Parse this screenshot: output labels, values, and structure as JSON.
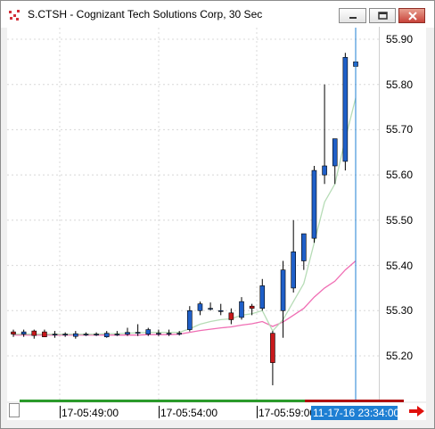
{
  "window": {
    "title": "S.CTSH - Cognizant Tech Solutions Corp, 30 Sec"
  },
  "colors": {
    "up_candle": "#1f5fc8",
    "down_candle": "#c8191c",
    "ma_fast": "#b6dcb6",
    "ma_slow": "#f06eb4",
    "cursor_line": "#1e7fd3",
    "grid": "#d8d8d8"
  },
  "icons": {
    "app": "chart-app-icon",
    "minimize": "minimize-icon",
    "maximize": "maximize-icon",
    "close": "close-icon",
    "scroll_right": "red-right-arrow-icon"
  },
  "chart_data": {
    "type": "candlestick",
    "symbol": "S.CTSH",
    "interval": "30 Sec",
    "y_axis": {
      "labels": [
        "55.90",
        "55.80",
        "55.70",
        "55.60",
        "55.50",
        "55.40",
        "55.30",
        "55.20"
      ],
      "values": [
        55.9,
        55.8,
        55.7,
        55.6,
        55.5,
        55.4,
        55.3,
        55.2
      ],
      "range": [
        55.12,
        55.93
      ]
    },
    "x_axis": {
      "labels": [
        "17-05:49:00",
        "17-05:54:00",
        "17-05:59:00"
      ],
      "cursor_label": "11-17-16 23:34:00"
    },
    "grid": true,
    "candles": [
      {
        "o": 55.253,
        "h": 55.258,
        "l": 55.242,
        "c": 55.248
      },
      {
        "o": 55.248,
        "h": 55.258,
        "l": 55.242,
        "c": 55.253
      },
      {
        "o": 55.255,
        "h": 55.258,
        "l": 55.238,
        "c": 55.245
      },
      {
        "o": 55.253,
        "h": 55.258,
        "l": 55.242,
        "c": 55.242
      },
      {
        "o": 55.248,
        "h": 55.255,
        "l": 55.24,
        "c": 55.248
      },
      {
        "o": 55.248,
        "h": 55.252,
        "l": 55.242,
        "c": 55.248
      },
      {
        "o": 55.243,
        "h": 55.255,
        "l": 55.238,
        "c": 55.249
      },
      {
        "o": 55.248,
        "h": 55.252,
        "l": 55.244,
        "c": 55.248
      },
      {
        "o": 55.248,
        "h": 55.252,
        "l": 55.244,
        "c": 55.248
      },
      {
        "o": 55.242,
        "h": 55.255,
        "l": 55.24,
        "c": 55.25
      },
      {
        "o": 55.248,
        "h": 55.255,
        "l": 55.244,
        "c": 55.248
      },
      {
        "o": 55.248,
        "h": 55.262,
        "l": 55.244,
        "c": 55.252
      },
      {
        "o": 55.252,
        "h": 55.27,
        "l": 55.244,
        "c": 55.252
      },
      {
        "o": 55.248,
        "h": 55.262,
        "l": 55.244,
        "c": 55.258
      },
      {
        "o": 55.25,
        "h": 55.258,
        "l": 55.244,
        "c": 55.25
      },
      {
        "o": 55.25,
        "h": 55.258,
        "l": 55.244,
        "c": 55.25
      },
      {
        "o": 55.25,
        "h": 55.255,
        "l": 55.245,
        "c": 55.25
      },
      {
        "o": 55.258,
        "h": 55.31,
        "l": 55.254,
        "c": 55.3
      },
      {
        "o": 55.3,
        "h": 55.32,
        "l": 55.29,
        "c": 55.315
      },
      {
        "o": 55.305,
        "h": 55.318,
        "l": 55.3,
        "c": 55.305
      },
      {
        "o": 55.3,
        "h": 55.315,
        "l": 55.29,
        "c": 55.3
      },
      {
        "o": 55.295,
        "h": 55.305,
        "l": 55.27,
        "c": 55.28
      },
      {
        "o": 55.285,
        "h": 55.33,
        "l": 55.28,
        "c": 55.32
      },
      {
        "o": 55.31,
        "h": 55.315,
        "l": 55.29,
        "c": 55.305
      },
      {
        "o": 55.305,
        "h": 55.37,
        "l": 55.3,
        "c": 55.355
      },
      {
        "o": 55.25,
        "h": 55.255,
        "l": 55.135,
        "c": 55.185
      },
      {
        "o": 55.3,
        "h": 55.41,
        "l": 55.24,
        "c": 55.39
      },
      {
        "o": 55.35,
        "h": 55.5,
        "l": 55.34,
        "c": 55.43
      },
      {
        "o": 55.41,
        "h": 55.47,
        "l": 55.39,
        "c": 55.47
      },
      {
        "o": 55.46,
        "h": 55.62,
        "l": 55.45,
        "c": 55.61
      },
      {
        "o": 55.6,
        "h": 55.8,
        "l": 55.58,
        "c": 55.62
      },
      {
        "o": 55.62,
        "h": 55.68,
        "l": 55.58,
        "c": 55.68
      },
      {
        "o": 55.63,
        "h": 55.87,
        "l": 55.61,
        "c": 55.86
      },
      {
        "o": 55.84,
        "h": 55.89,
        "l": 55.77,
        "c": 55.85
      }
    ],
    "ma_fast": [
      55.248,
      55.248,
      55.248,
      55.248,
      55.248,
      55.248,
      55.248,
      55.248,
      55.248,
      55.249,
      55.249,
      55.25,
      55.251,
      55.252,
      55.252,
      55.252,
      55.252,
      55.26,
      55.27,
      55.276,
      55.28,
      55.282,
      55.29,
      55.293,
      55.3,
      55.255,
      55.28,
      55.32,
      55.36,
      55.45,
      55.54,
      55.58,
      55.68,
      55.77
    ],
    "ma_slow": [
      55.246,
      55.246,
      55.246,
      55.246,
      55.246,
      55.246,
      55.246,
      55.246,
      55.246,
      55.246,
      55.246,
      55.246,
      55.246,
      55.247,
      55.247,
      55.247,
      55.248,
      55.252,
      55.256,
      55.259,
      55.262,
      55.264,
      55.268,
      55.271,
      55.276,
      55.265,
      55.275,
      55.29,
      55.305,
      55.33,
      55.35,
      55.365,
      55.39,
      55.41
    ]
  }
}
